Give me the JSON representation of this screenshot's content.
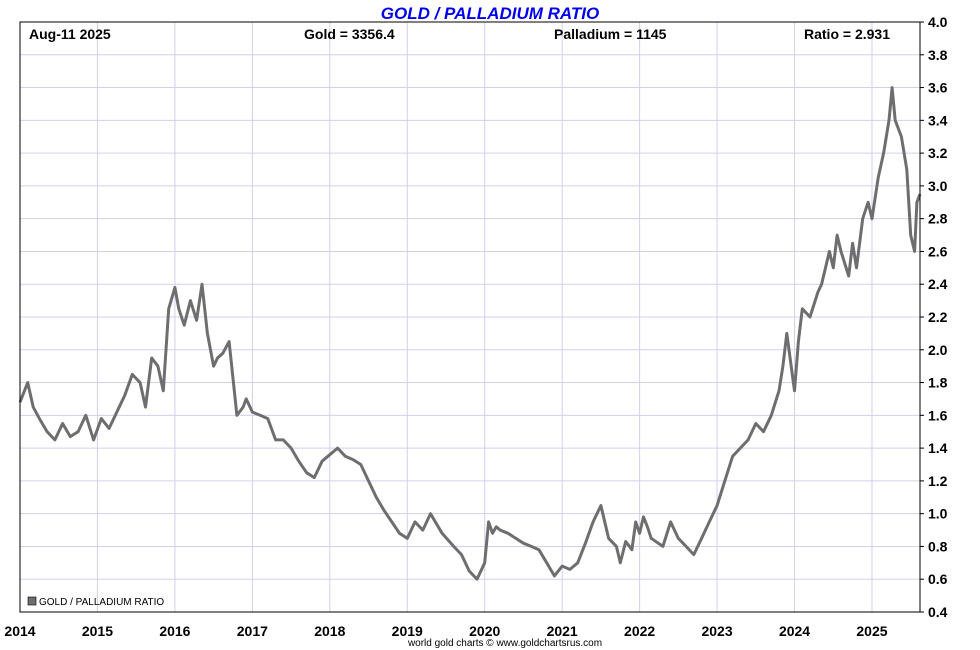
{
  "header": {
    "title": "GOLD / PALLADIUM RATIO",
    "date": "Aug-11  2025",
    "gold": "Gold = 3356.4",
    "palladium": "Palladium = 1145",
    "ratio": "Ratio = 2.931"
  },
  "legend": {
    "label": "GOLD / PALLADIUM RATIO"
  },
  "footer": {
    "credit": "world gold charts © www.goldchartsrus.com"
  },
  "colors": {
    "line": "#6e6e6e",
    "grid": "#d0d0f0",
    "title": "#0000ee"
  },
  "chart_data": {
    "type": "line",
    "title": "GOLD / PALLADIUM RATIO",
    "xlim": [
      2014.0,
      2025.62
    ],
    "ylim": [
      0.4,
      4.0
    ],
    "x_ticks": [
      "2014",
      "2015",
      "2016",
      "2017",
      "2018",
      "2019",
      "2020",
      "2021",
      "2022",
      "2023",
      "2024",
      "2025"
    ],
    "y_ticks": [
      "0.4",
      "0.6",
      "0.8",
      "1.0",
      "1.2",
      "1.4",
      "1.6",
      "1.8",
      "2.0",
      "2.2",
      "2.4",
      "2.6",
      "2.8",
      "3.0",
      "3.2",
      "3.4",
      "3.6",
      "3.8",
      "4.0"
    ],
    "grid": true,
    "legend_position": "bottom-left",
    "series": [
      {
        "name": "GOLD / PALLADIUM RATIO",
        "x": [
          2014.0,
          2014.1,
          2014.17,
          2014.25,
          2014.35,
          2014.45,
          2014.55,
          2014.65,
          2014.75,
          2014.85,
          2014.95,
          2015.05,
          2015.15,
          2015.25,
          2015.35,
          2015.45,
          2015.55,
          2015.62,
          2015.7,
          2015.78,
          2015.85,
          2015.92,
          2016.0,
          2016.05,
          2016.12,
          2016.2,
          2016.28,
          2016.35,
          2016.42,
          2016.5,
          2016.55,
          2016.62,
          2016.7,
          2016.8,
          2016.88,
          2016.92,
          2017.0,
          2017.1,
          2017.2,
          2017.3,
          2017.4,
          2017.5,
          2017.6,
          2017.7,
          2017.8,
          2017.9,
          2018.0,
          2018.1,
          2018.2,
          2018.3,
          2018.4,
          2018.5,
          2018.6,
          2018.7,
          2018.8,
          2018.9,
          2019.0,
          2019.1,
          2019.2,
          2019.3,
          2019.45,
          2019.6,
          2019.7,
          2019.8,
          2019.9,
          2020.0,
          2020.05,
          2020.1,
          2020.15,
          2020.2,
          2020.3,
          2020.4,
          2020.5,
          2020.6,
          2020.7,
          2020.8,
          2020.9,
          2021.0,
          2021.1,
          2021.2,
          2021.3,
          2021.4,
          2021.5,
          2021.6,
          2021.7,
          2021.75,
          2021.82,
          2021.9,
          2021.95,
          2022.0,
          2022.05,
          2022.1,
          2022.15,
          2022.3,
          2022.4,
          2022.5,
          2022.6,
          2022.7,
          2022.8,
          2022.9,
          2023.0,
          2023.1,
          2023.2,
          2023.3,
          2023.4,
          2023.5,
          2023.6,
          2023.7,
          2023.8,
          2023.85,
          2023.9,
          2024.0,
          2024.05,
          2024.1,
          2024.2,
          2024.3,
          2024.35,
          2024.45,
          2024.5,
          2024.55,
          2024.6,
          2024.7,
          2024.75,
          2024.8,
          2024.88,
          2024.95,
          2025.0,
          2025.08,
          2025.15,
          2025.22,
          2025.26,
          2025.3,
          2025.38,
          2025.45,
          2025.5,
          2025.55,
          2025.58,
          2025.62
        ],
        "values": [
          1.68,
          1.8,
          1.65,
          1.58,
          1.5,
          1.45,
          1.55,
          1.47,
          1.5,
          1.6,
          1.45,
          1.58,
          1.52,
          1.62,
          1.72,
          1.85,
          1.8,
          1.65,
          1.95,
          1.9,
          1.75,
          2.25,
          2.38,
          2.25,
          2.15,
          2.3,
          2.18,
          2.4,
          2.1,
          1.9,
          1.95,
          1.98,
          2.05,
          1.6,
          1.65,
          1.7,
          1.62,
          1.6,
          1.58,
          1.45,
          1.45,
          1.4,
          1.32,
          1.25,
          1.22,
          1.32,
          1.36,
          1.4,
          1.35,
          1.33,
          1.3,
          1.2,
          1.1,
          1.02,
          0.95,
          0.88,
          0.85,
          0.95,
          0.9,
          1.0,
          0.88,
          0.8,
          0.75,
          0.65,
          0.6,
          0.7,
          0.95,
          0.88,
          0.92,
          0.9,
          0.88,
          0.85,
          0.82,
          0.8,
          0.78,
          0.7,
          0.62,
          0.68,
          0.66,
          0.7,
          0.82,
          0.95,
          1.05,
          0.85,
          0.8,
          0.7,
          0.83,
          0.78,
          0.95,
          0.88,
          0.98,
          0.92,
          0.85,
          0.8,
          0.95,
          0.85,
          0.8,
          0.75,
          0.85,
          0.95,
          1.05,
          1.2,
          1.35,
          1.4,
          1.45,
          1.55,
          1.5,
          1.6,
          1.75,
          1.9,
          2.1,
          1.75,
          2.05,
          2.25,
          2.2,
          2.35,
          2.4,
          2.6,
          2.5,
          2.7,
          2.6,
          2.45,
          2.65,
          2.5,
          2.8,
          2.9,
          2.8,
          3.05,
          3.2,
          3.4,
          3.6,
          3.4,
          3.3,
          3.1,
          2.7,
          2.6,
          2.9,
          2.95
        ]
      }
    ]
  }
}
